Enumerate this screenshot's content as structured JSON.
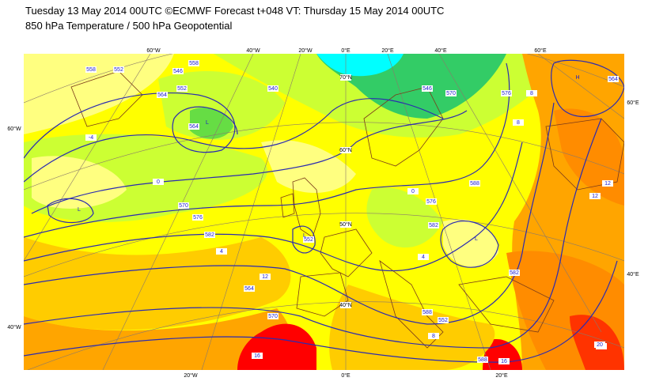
{
  "header": {
    "line1": "Tuesday 13 May 2014 00UTC ©ECMWF Forecast t+048 VT: Thursday 15 May 2014 00UTC",
    "line2": "850 hPa Temperature / 500 hPa Geopotential"
  },
  "map": {
    "top_longitudes": [
      "60°W",
      "40°W",
      "20°W",
      "0°E",
      "20°E",
      "40°E",
      "60°E"
    ],
    "bottom_longitudes": [
      "20°W",
      "0°E",
      "20°E"
    ],
    "left_latitudes": [
      "60°W",
      "40°W"
    ],
    "right_latitudes": [
      "60°E",
      "40°E"
    ],
    "inner_latitudes": [
      "70°N",
      "60°N",
      "50°N",
      "40°N"
    ],
    "geopotential_labels": [
      540,
      546,
      552,
      558,
      564,
      570,
      576,
      582,
      588,
      552,
      564,
      570,
      576,
      582,
      588,
      576,
      582,
      588,
      552,
      564,
      570,
      546,
      552,
      558,
      564
    ],
    "temperature_labels": [
      0,
      4,
      8,
      12,
      16,
      20,
      -4,
      0,
      4,
      8,
      12,
      16,
      20,
      12,
      8
    ],
    "pressure_centres": [
      "L",
      "L",
      "L",
      "L",
      "H"
    ]
  }
}
